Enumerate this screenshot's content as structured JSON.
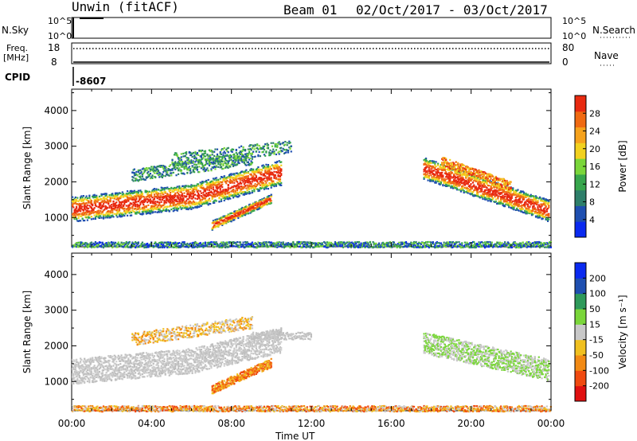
{
  "header": {
    "station": "Unwin (fitACF)",
    "beam": "Beam 01",
    "date_range": "02/Oct/2017 - 03/Oct/2017"
  },
  "top_panels": {
    "nsky_label": "N.Sky",
    "nsky_ticks": [
      "10^5",
      "10^0"
    ],
    "nsearch_label": "N.Search",
    "nsearch_ticks": [
      "10^5",
      "10^0"
    ],
    "freq_label": "Freq.",
    "freq_unit": "[MHz]",
    "freq_ticks": [
      "18",
      "8"
    ],
    "nave_label": "Nave",
    "nave_ticks": [
      "80",
      "0"
    ],
    "cpid_label": "CPID",
    "cpid_value": "-8607"
  },
  "chart_data": [
    {
      "type": "heatmap",
      "name": "power",
      "ylabel": "Slant Range [km]",
      "ytick_labels": [
        "1000",
        "2000",
        "3000",
        "4000"
      ],
      "ylim": [
        180,
        4600
      ],
      "xlim_hours": [
        0,
        24
      ],
      "colorbar": {
        "label": "Power [dB]",
        "tick_labels": [
          "4",
          "8",
          "12",
          "16",
          "20",
          "24",
          "28"
        ],
        "range": [
          0,
          30
        ],
        "colors": [
          "#0a2af0",
          "#1f4fb0",
          "#2e7f6a",
          "#37a64c",
          "#7ad63a",
          "#f2d11e",
          "#f6a21c",
          "#f06a12",
          "#e82a10"
        ]
      }
    },
    {
      "type": "heatmap",
      "name": "velocity",
      "ylabel": "Slant Range [km]",
      "ytick_labels": [
        "1000",
        "2000",
        "3000",
        "4000"
      ],
      "ylim": [
        180,
        4600
      ],
      "xlim_hours": [
        0,
        24
      ],
      "xlabel": "Time UT",
      "xtick_labels": [
        "00:00",
        "04:00",
        "08:00",
        "12:00",
        "16:00",
        "20:00",
        "00:00"
      ],
      "colorbar": {
        "label": "Velocity [m s⁻¹]",
        "tick_labels": [
          "-200",
          "-100",
          "-50",
          "-15",
          "15",
          "50",
          "100",
          "200"
        ],
        "colors": [
          "#e01010",
          "#f04a10",
          "#f28a14",
          "#f0c020",
          "#c8c8c8",
          "#7ad63a",
          "#2e9a5a",
          "#1f4fb0",
          "#0a2af0"
        ]
      }
    }
  ]
}
